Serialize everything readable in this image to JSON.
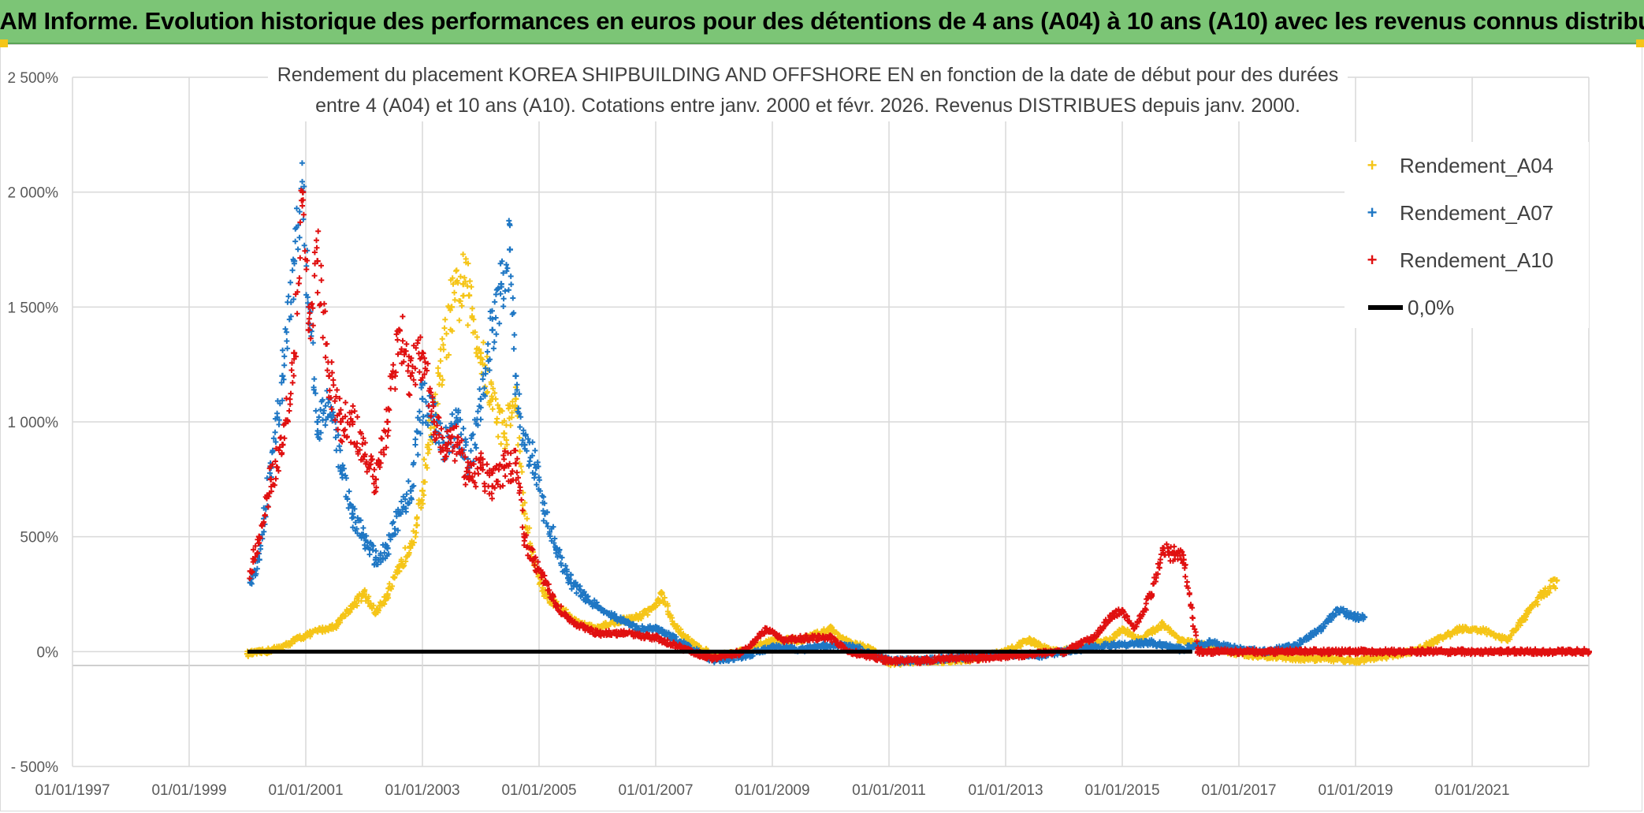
{
  "banner": {
    "title": "ADAM Informe. Evolution historique des performances en euros pour des détentions de 4 ans (A04) à 10 ans (A10) avec les revenus connus distribués"
  },
  "colors": {
    "banner_bg": "#7cc576",
    "A04": "#f5c518",
    "A07": "#1f77c4",
    "A10": "#e01010",
    "zero": "#000000",
    "grid": "#d9d9d9",
    "axis_text": "#595959"
  },
  "chart_data": {
    "type": "scatter",
    "title_line1": "Rendement du placement KOREA SHIPBUILDING AND OFFSHORE EN en fonction de la date de début pour des durées",
    "title_line2": "entre 4 (A04) et 10 ans (A10). Cotations entre janv. 2000 et févr. 2026. Revenus DISTRIBUES depuis janv. 2000.",
    "x_range": [
      1997.0,
      2023.0
    ],
    "ylim": [
      -500,
      2500
    ],
    "y_ticks": [
      -500,
      0,
      500,
      1000,
      1500,
      2000,
      2500
    ],
    "y_tick_labels": [
      "- 500%",
      "0%",
      "500%",
      "1 000%",
      "1 500%",
      "2 000%",
      "2 500%"
    ],
    "x_ticks": [
      1997.0,
      1999.0,
      2001.0,
      2003.0,
      2005.0,
      2007.0,
      2009.0,
      2011.0,
      2013.0,
      2015.0,
      2017.0,
      2019.0,
      2021.0
    ],
    "x_tick_labels": [
      "01/01/1997",
      "01/01/1999",
      "01/01/2001",
      "01/01/2003",
      "01/01/2005",
      "01/01/2007",
      "01/01/2009",
      "01/01/2011",
      "01/01/2013",
      "01/01/2015",
      "01/01/2017",
      "01/01/2019",
      "01/01/2021"
    ],
    "series": [
      {
        "name": "Rendement_A04",
        "key": "A04",
        "points": [
          [
            2000.0,
            -10
          ],
          [
            2000.3,
            0
          ],
          [
            2000.6,
            20
          ],
          [
            2000.9,
            60
          ],
          [
            2001.2,
            90
          ],
          [
            2001.5,
            110
          ],
          [
            2001.8,
            200
          ],
          [
            2002.0,
            250
          ],
          [
            2002.2,
            170
          ],
          [
            2002.4,
            250
          ],
          [
            2002.6,
            350
          ],
          [
            2002.9,
            550
          ],
          [
            2003.0,
            700
          ],
          [
            2003.1,
            900
          ],
          [
            2003.3,
            1200
          ],
          [
            2003.5,
            1500
          ],
          [
            2003.7,
            1600
          ],
          [
            2003.8,
            1550
          ],
          [
            2004.0,
            1300
          ],
          [
            2004.2,
            1100
          ],
          [
            2004.4,
            950
          ],
          [
            2004.6,
            1100
          ],
          [
            2004.75,
            600
          ],
          [
            2004.9,
            400
          ],
          [
            2005.1,
            250
          ],
          [
            2005.4,
            180
          ],
          [
            2005.7,
            120
          ],
          [
            2006.0,
            100
          ],
          [
            2006.3,
            130
          ],
          [
            2006.7,
            150
          ],
          [
            2007.0,
            200
          ],
          [
            2007.1,
            250
          ],
          [
            2007.3,
            120
          ],
          [
            2007.6,
            40
          ],
          [
            2008.0,
            -20
          ],
          [
            2008.5,
            0
          ],
          [
            2009.0,
            50
          ],
          [
            2009.5,
            50
          ],
          [
            2010.0,
            100
          ],
          [
            2010.3,
            40
          ],
          [
            2010.7,
            10
          ],
          [
            2011.0,
            -50
          ],
          [
            2011.5,
            -40
          ],
          [
            2012.0,
            -40
          ],
          [
            2012.5,
            -30
          ],
          [
            2013.0,
            0
          ],
          [
            2013.4,
            50
          ],
          [
            2013.8,
            0
          ],
          [
            2014.2,
            10
          ],
          [
            2014.8,
            50
          ],
          [
            2015.0,
            100
          ],
          [
            2015.3,
            50
          ],
          [
            2015.7,
            120
          ],
          [
            2016.0,
            50
          ],
          [
            2016.5,
            20
          ],
          [
            2017.0,
            -10
          ],
          [
            2017.5,
            -20
          ],
          [
            2018.0,
            -30
          ],
          [
            2018.5,
            -30
          ],
          [
            2019.0,
            -40
          ],
          [
            2019.5,
            -20
          ],
          [
            2020.0,
            0
          ],
          [
            2020.4,
            50
          ],
          [
            2020.8,
            100
          ],
          [
            2021.2,
            90
          ],
          [
            2021.6,
            50
          ],
          [
            2021.9,
            150
          ],
          [
            2022.2,
            250
          ],
          [
            2022.45,
            310
          ]
        ]
      },
      {
        "name": "Rendement_A07",
        "key": "A07",
        "points": [
          [
            2000.05,
            300
          ],
          [
            2000.2,
            400
          ],
          [
            2000.4,
            800
          ],
          [
            2000.6,
            1200
          ],
          [
            2000.8,
            1700
          ],
          [
            2000.95,
            2000
          ],
          [
            2001.05,
            1500
          ],
          [
            2001.2,
            1000
          ],
          [
            2001.4,
            1100
          ],
          [
            2001.6,
            800
          ],
          [
            2001.8,
            600
          ],
          [
            2002.0,
            500
          ],
          [
            2002.2,
            400
          ],
          [
            2002.4,
            450
          ],
          [
            2002.6,
            600
          ],
          [
            2002.8,
            700
          ],
          [
            2003.0,
            1100
          ],
          [
            2003.2,
            1000
          ],
          [
            2003.4,
            900
          ],
          [
            2003.6,
            1000
          ],
          [
            2003.8,
            800
          ],
          [
            2004.0,
            1100
          ],
          [
            2004.2,
            1400
          ],
          [
            2004.35,
            1600
          ],
          [
            2004.5,
            1750
          ],
          [
            2004.6,
            1200
          ],
          [
            2004.75,
            900
          ],
          [
            2004.95,
            800
          ],
          [
            2005.1,
            600
          ],
          [
            2005.3,
            450
          ],
          [
            2005.5,
            320
          ],
          [
            2005.8,
            230
          ],
          [
            2006.0,
            200
          ],
          [
            2006.3,
            150
          ],
          [
            2006.7,
            100
          ],
          [
            2007.0,
            100
          ],
          [
            2007.3,
            60
          ],
          [
            2007.7,
            0
          ],
          [
            2008.0,
            -40
          ],
          [
            2008.5,
            -20
          ],
          [
            2009.0,
            20
          ],
          [
            2009.5,
            10
          ],
          [
            2010.0,
            30
          ],
          [
            2010.4,
            20
          ],
          [
            2010.8,
            -20
          ],
          [
            2011.0,
            -40
          ],
          [
            2011.5,
            -40
          ],
          [
            2012.0,
            -30
          ],
          [
            2012.5,
            -20
          ],
          [
            2013.0,
            -10
          ],
          [
            2013.5,
            -20
          ],
          [
            2014.0,
            0
          ],
          [
            2014.5,
            20
          ],
          [
            2015.0,
            30
          ],
          [
            2015.5,
            40
          ],
          [
            2016.0,
            10
          ],
          [
            2016.5,
            40
          ],
          [
            2017.0,
            10
          ],
          [
            2017.5,
            0
          ],
          [
            2018.0,
            30
          ],
          [
            2018.4,
            100
          ],
          [
            2018.7,
            180
          ],
          [
            2019.0,
            150
          ],
          [
            2019.15,
            150
          ]
        ]
      },
      {
        "name": "Rendement_A10",
        "key": "A10",
        "points": [
          [
            2000.05,
            350
          ],
          [
            2000.2,
            500
          ],
          [
            2000.4,
            750
          ],
          [
            2000.6,
            900
          ],
          [
            2000.8,
            1300
          ],
          [
            2000.95,
            2000
          ],
          [
            2001.05,
            1400
          ],
          [
            2001.2,
            1700
          ],
          [
            2001.4,
            1200
          ],
          [
            2001.6,
            1000
          ],
          [
            2001.8,
            1000
          ],
          [
            2002.0,
            850
          ],
          [
            2002.2,
            750
          ],
          [
            2002.4,
            1000
          ],
          [
            2002.6,
            1400
          ],
          [
            2002.8,
            1200
          ],
          [
            2003.0,
            1300
          ],
          [
            2003.2,
            1000
          ],
          [
            2003.4,
            900
          ],
          [
            2003.6,
            900
          ],
          [
            2003.8,
            750
          ],
          [
            2004.0,
            800
          ],
          [
            2004.2,
            720
          ],
          [
            2004.4,
            800
          ],
          [
            2004.6,
            820
          ],
          [
            2004.75,
            500
          ],
          [
            2004.9,
            400
          ],
          [
            2005.1,
            300
          ],
          [
            2005.3,
            200
          ],
          [
            2005.6,
            120
          ],
          [
            2006.0,
            80
          ],
          [
            2006.5,
            80
          ],
          [
            2007.0,
            60
          ],
          [
            2007.5,
            10
          ],
          [
            2008.0,
            -30
          ],
          [
            2008.5,
            0
          ],
          [
            2008.9,
            100
          ],
          [
            2009.2,
            50
          ],
          [
            2009.6,
            60
          ],
          [
            2010.0,
            60
          ],
          [
            2010.3,
            0
          ],
          [
            2010.7,
            -20
          ],
          [
            2011.0,
            -40
          ],
          [
            2011.5,
            -40
          ],
          [
            2012.0,
            -30
          ],
          [
            2012.5,
            -30
          ],
          [
            2013.0,
            -20
          ],
          [
            2013.5,
            -10
          ],
          [
            2014.0,
            0
          ],
          [
            2014.5,
            60
          ],
          [
            2014.8,
            150
          ],
          [
            2015.0,
            180
          ],
          [
            2015.2,
            100
          ],
          [
            2015.5,
            250
          ],
          [
            2015.7,
            450
          ],
          [
            2015.9,
            420
          ],
          [
            2016.05,
            400
          ],
          [
            2016.3,
            0
          ],
          [
            2017.0,
            0
          ],
          [
            2018.0,
            0
          ],
          [
            2019.0,
            0
          ],
          [
            2020.0,
            0
          ],
          [
            2021.0,
            0
          ],
          [
            2022.0,
            0
          ],
          [
            2023.0,
            0
          ]
        ]
      }
    ],
    "zero_line": {
      "name": "0,0%",
      "x_from": 2000.0,
      "x_to": 2023.0,
      "value": 0
    },
    "legend_position": "right"
  }
}
